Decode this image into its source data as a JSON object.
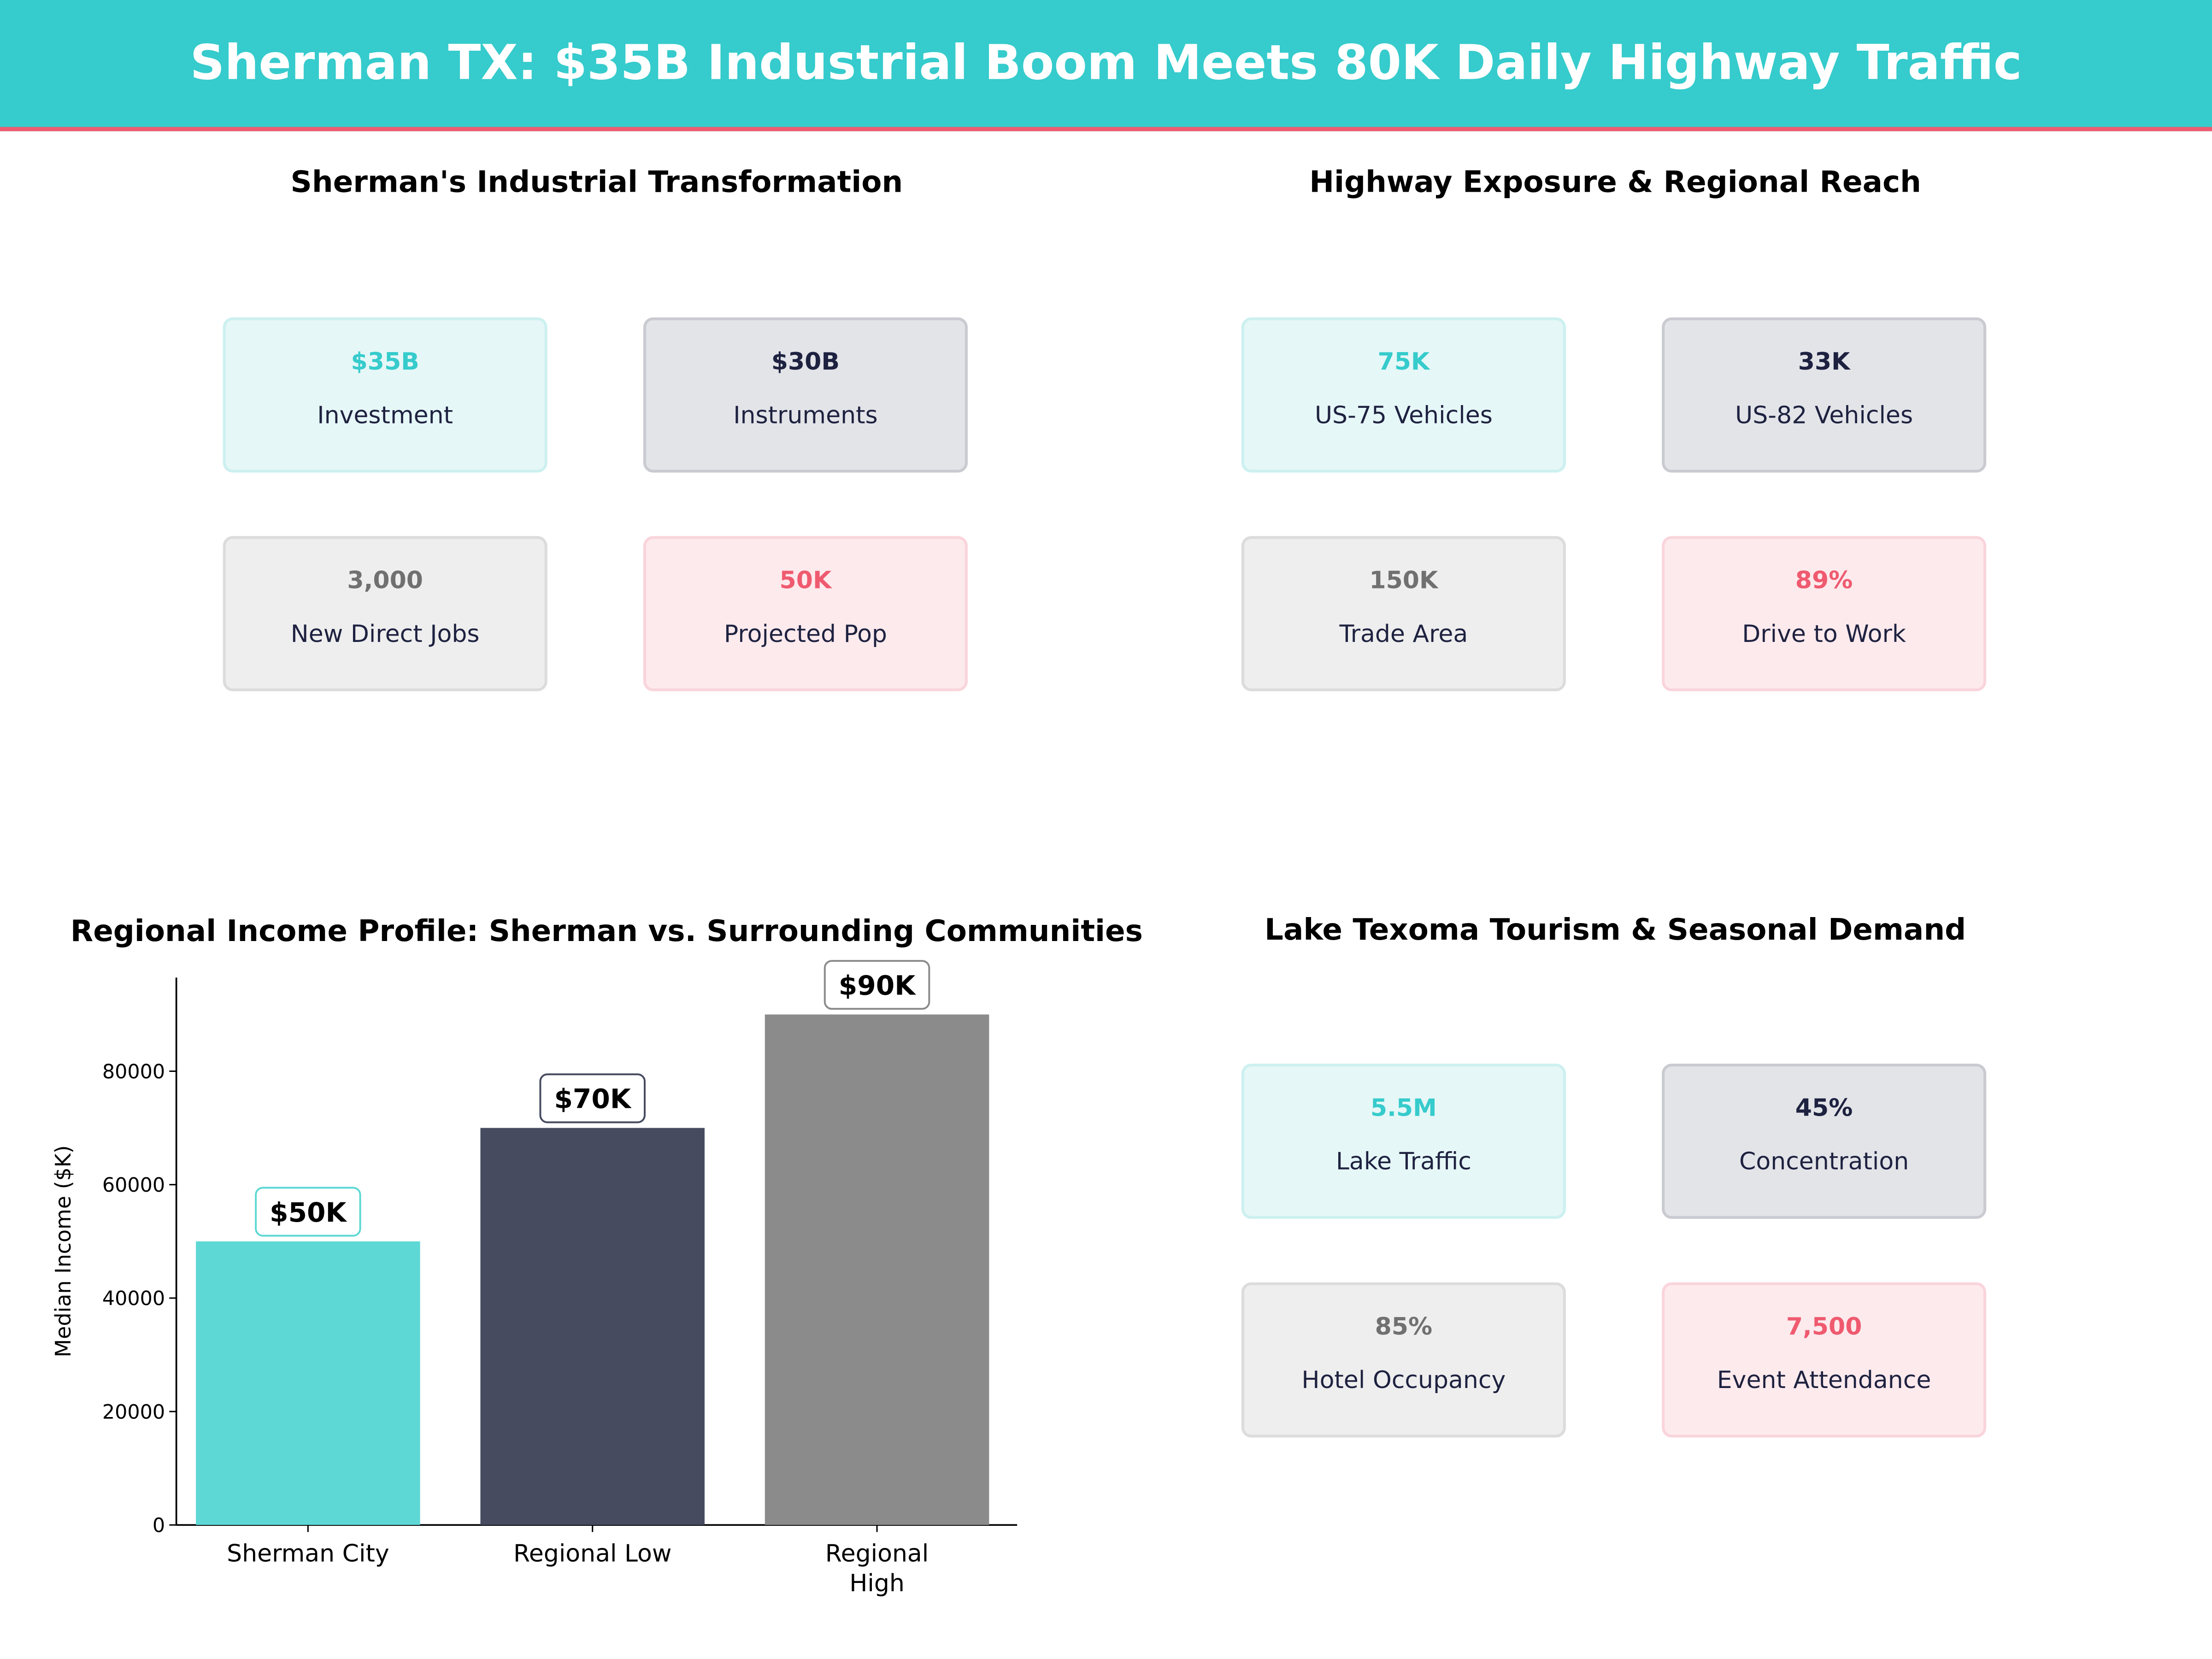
{
  "header": {
    "title": "Sherman TX: $35B Industrial Boom Meets 80K Daily Highway Traffic"
  },
  "colors": {
    "teal": "#36CBCC",
    "dark": "#1E2240",
    "gray": "#707070",
    "pink": "#EF5A6F"
  },
  "panels": [
    {
      "title": "Sherman's Industrial Transformation",
      "cards": [
        {
          "value": "$35B",
          "label": "Investment",
          "style": "teal"
        },
        {
          "value": "$30B",
          "label": "Instruments",
          "style": "dark"
        },
        {
          "value": "3,000",
          "label": "New Direct Jobs",
          "style": "gray"
        },
        {
          "value": "50K",
          "label": "Projected Pop",
          "style": "pink"
        }
      ]
    },
    {
      "title": "Highway Exposure & Regional Reach",
      "cards": [
        {
          "value": "75K",
          "label": "US-75  Vehicles",
          "style": "teal"
        },
        {
          "value": "33K",
          "label": "US-82  Vehicles",
          "style": "dark"
        },
        {
          "value": "150K",
          "label": "Trade Area",
          "style": "gray"
        },
        {
          "value": "89%",
          "label": "Drive to Work",
          "style": "pink"
        }
      ]
    },
    {
      "title": "Lake Texoma Tourism & Seasonal Demand",
      "cards": [
        {
          "value": "5.5M",
          "label": "Lake Traffic",
          "style": "teal"
        },
        {
          "value": "45%",
          "label": "Concentration",
          "style": "dark"
        },
        {
          "value": "85%",
          "label": "Hotel Occupancy",
          "style": "gray"
        },
        {
          "value": "7,500",
          "label": "Event Attendance",
          "style": "pink"
        }
      ]
    }
  ],
  "chart_data": {
    "type": "bar",
    "title": "Regional Income Profile: Sherman vs. Surrounding Communities",
    "xlabel": "",
    "ylabel": "Median Income ($K)",
    "categories": [
      "Sherman City",
      "Regional Low",
      "Regional\nHigh"
    ],
    "values": [
      50000,
      70000,
      90000
    ],
    "data_labels": [
      "$50K",
      "$70K",
      "$90K"
    ],
    "bar_colors": [
      "#5DD8D5",
      "#464B60",
      "#8B8B8B"
    ],
    "label_border_colors": [
      "#5DD8D5",
      "#464B60",
      "#8B8B8B"
    ],
    "ylim": [
      0,
      96500
    ],
    "yticks": [
      0,
      20000,
      40000,
      60000,
      80000
    ],
    "grid": false
  }
}
